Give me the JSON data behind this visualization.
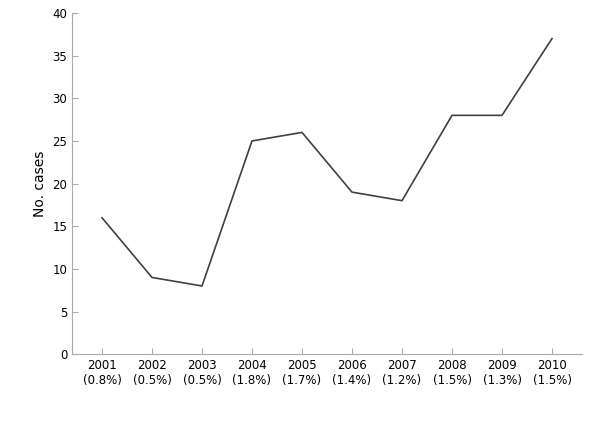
{
  "years": [
    2001,
    2002,
    2003,
    2004,
    2005,
    2006,
    2007,
    2008,
    2009,
    2010
  ],
  "values": [
    16,
    9,
    8,
    25,
    26,
    19,
    18,
    28,
    28,
    37
  ],
  "prevalences": [
    "0.8%",
    "0.5%",
    "0.5%",
    "1.8%",
    "1.7%",
    "1.4%",
    "1.2%",
    "1.5%",
    "1.3%",
    "1.5%"
  ],
  "ylabel": "No. cases",
  "ylim": [
    0,
    40
  ],
  "yticks": [
    0,
    5,
    10,
    15,
    20,
    25,
    30,
    35,
    40
  ],
  "line_color": "#404040",
  "line_width": 1.2,
  "bg_color": "#ffffff",
  "spine_color": "#aaaaaa",
  "tick_fontsize": 8.5,
  "label_fontsize": 10,
  "font_family": "Arial"
}
